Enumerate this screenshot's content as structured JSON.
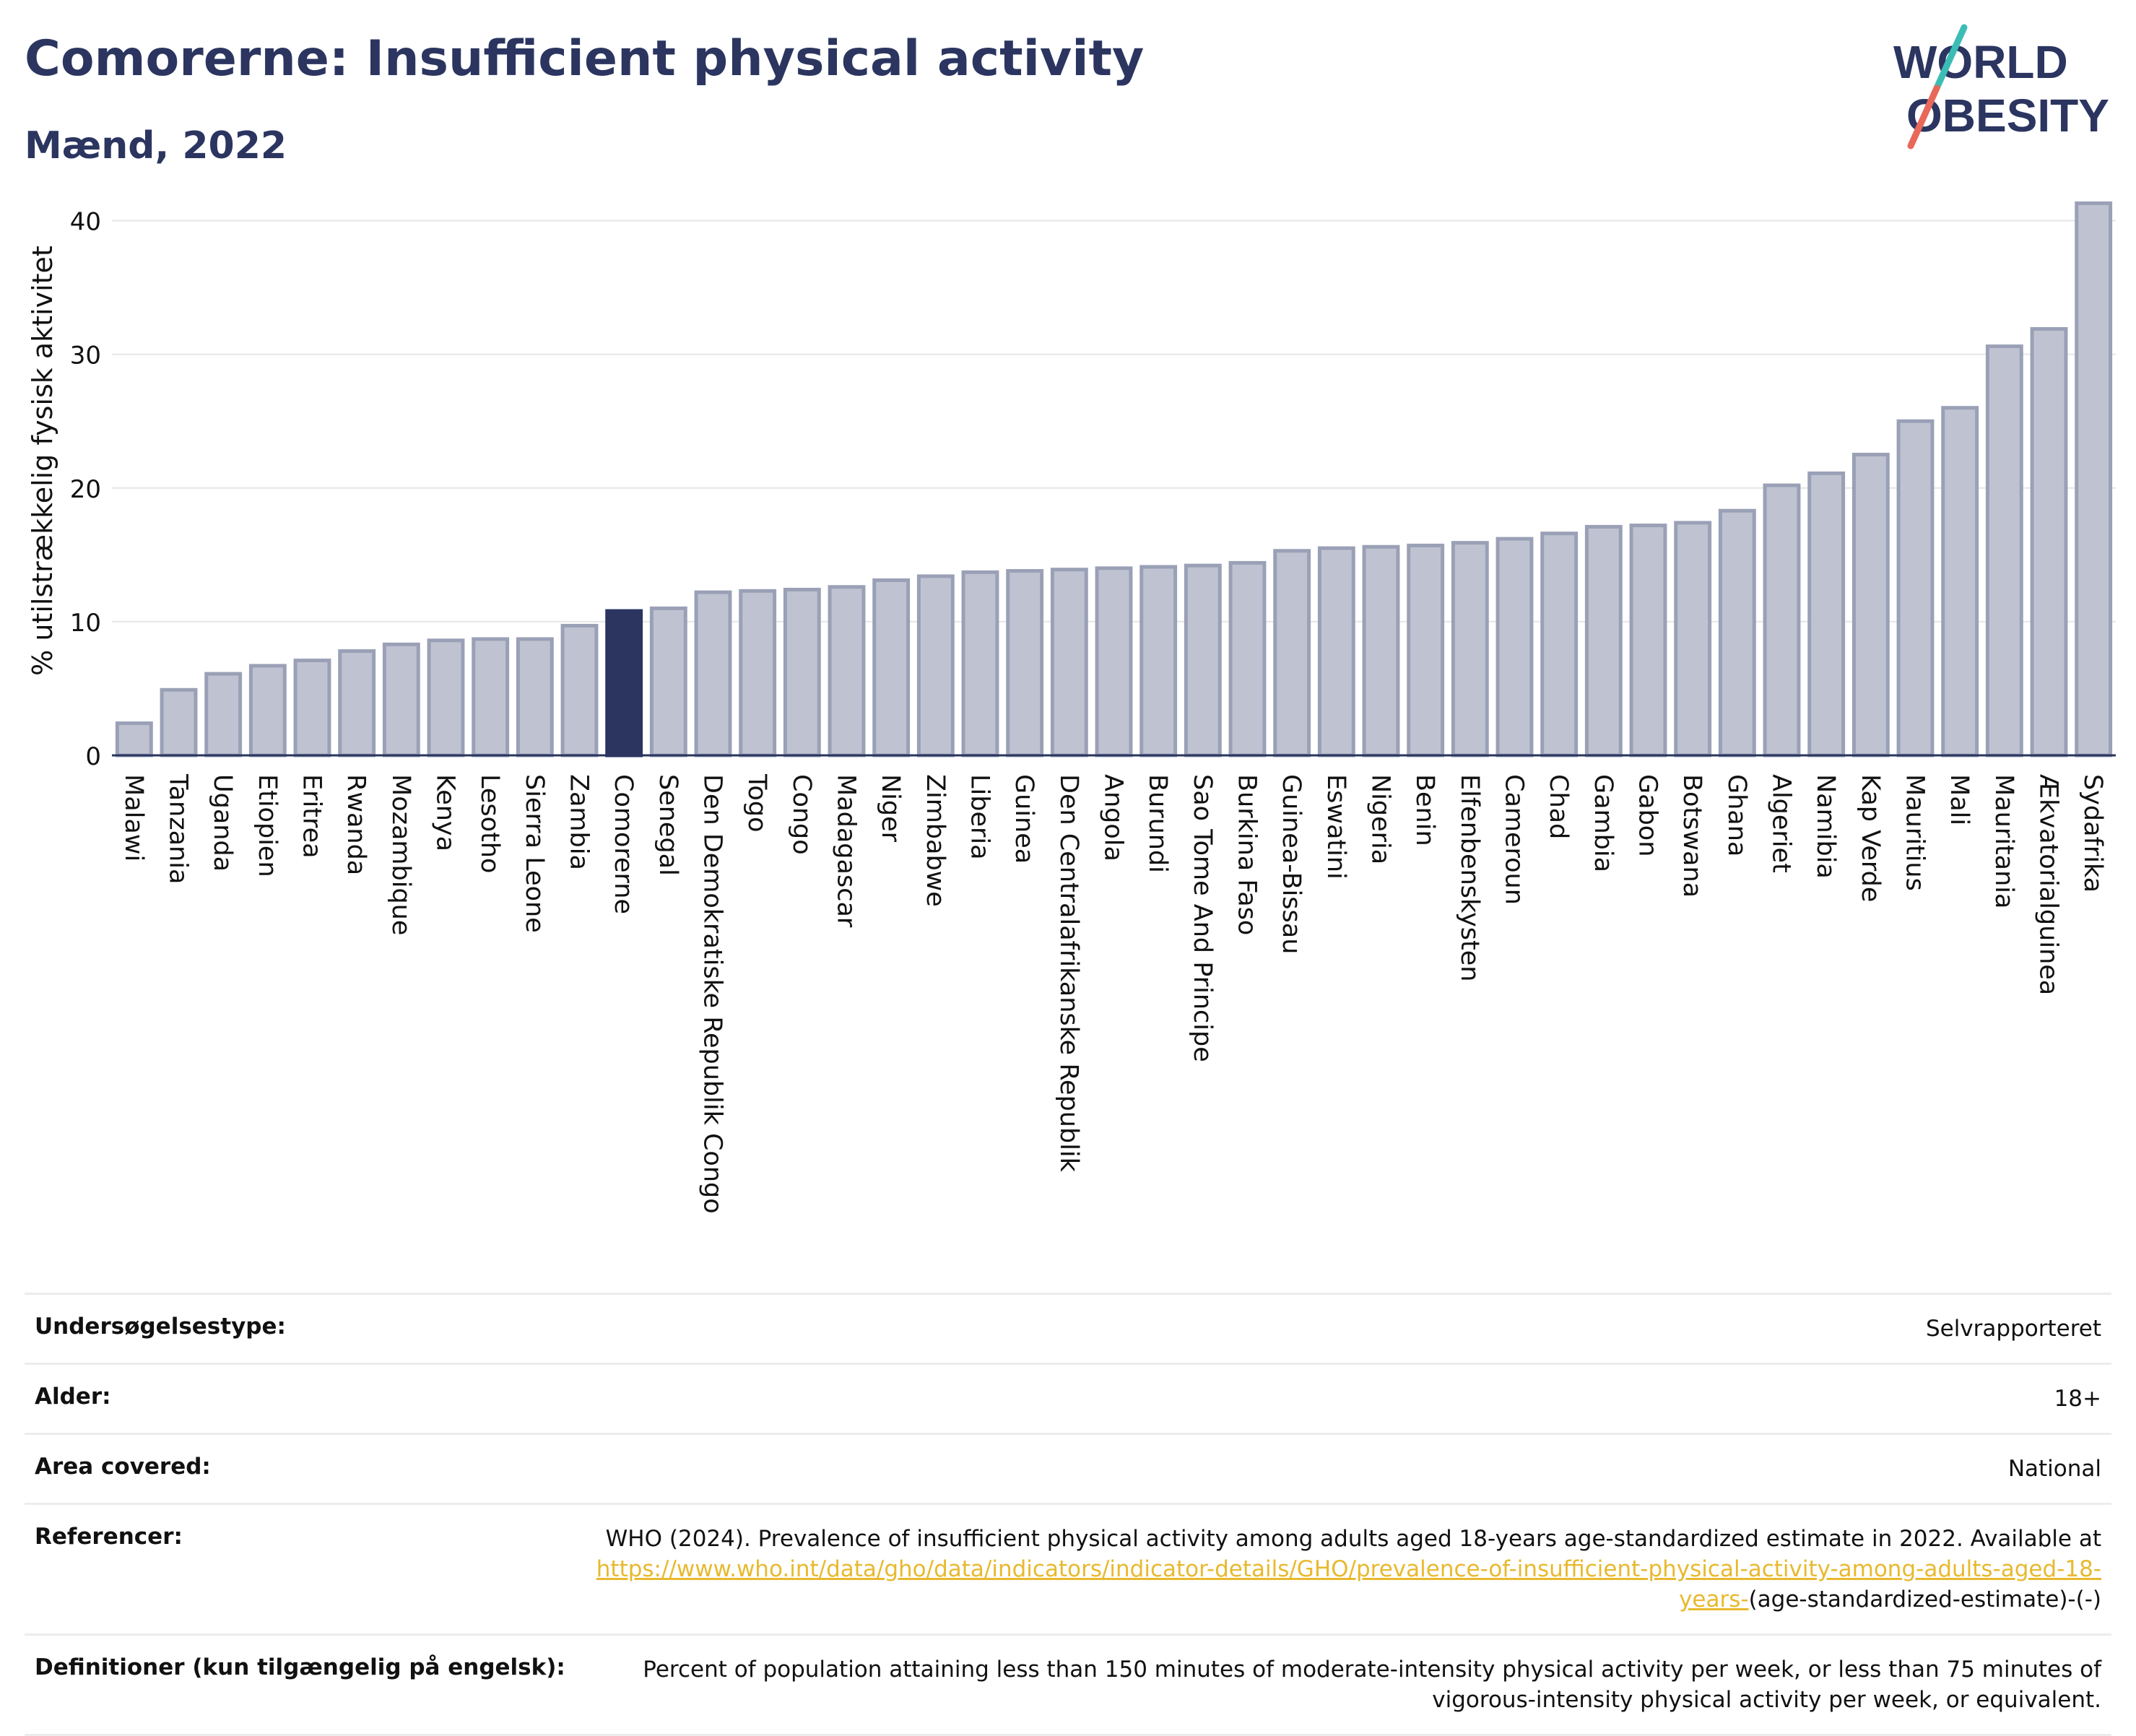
{
  "header": {
    "title": "Comorerne: Insufficient physical activity",
    "subtitle": "Mænd, 2022"
  },
  "logo": {
    "line1": "WORLD",
    "line2": "OBESITY"
  },
  "colors": {
    "title": "#2b3560",
    "bar": "#bfc3d1",
    "bar_stroke": "#9aa0b6",
    "highlight": "#2b3560",
    "link": "#e8b92e"
  },
  "chart_data": {
    "type": "bar",
    "ylabel": "% utilstrækkelig fysisk aktivitet",
    "ylim": [
      0,
      43
    ],
    "yticks": [
      0,
      10,
      20,
      30,
      40
    ],
    "grid": true,
    "highlight": "Comorerne",
    "categories": [
      "Malawi",
      "Tanzania",
      "Uganda",
      "Etiopien",
      "Eritrea",
      "Rwanda",
      "Mozambique",
      "Kenya",
      "Lesotho",
      "Sierra Leone",
      "Zambia",
      "Comorerne",
      "Senegal",
      "Den Demokratiske Republik Congo",
      "Togo",
      "Congo",
      "Madagascar",
      "Niger",
      "Zimbabwe",
      "Liberia",
      "Guinea",
      "Den Centralafrikanske Republik",
      "Angola",
      "Burundi",
      "Sao Tome And Principe",
      "Burkina Faso",
      "Guinea-Bissau",
      "Eswatini",
      "Nigeria",
      "Benin",
      "Elfenbenskysten",
      "Cameroun",
      "Chad",
      "Gambia",
      "Gabon",
      "Botswana",
      "Ghana",
      "Algeriet",
      "Namibia",
      "Kap Verde",
      "Mauritius",
      "Mali",
      "Mauritania",
      "Ækvatorialguinea",
      "Sydafrika"
    ],
    "values": [
      2.4,
      4.9,
      6.1,
      6.7,
      7.1,
      7.8,
      8.3,
      8.6,
      8.7,
      8.7,
      9.7,
      10.8,
      11.0,
      12.2,
      12.3,
      12.4,
      12.6,
      13.1,
      13.4,
      13.7,
      13.8,
      13.9,
      14.0,
      14.1,
      14.2,
      14.4,
      15.3,
      15.5,
      15.6,
      15.7,
      15.9,
      16.2,
      16.6,
      17.1,
      17.2,
      17.4,
      18.3,
      20.2,
      21.1,
      22.5,
      25.0,
      26.0,
      30.6,
      31.9,
      41.3
    ]
  },
  "info": {
    "survey_type_label": "Undersøgelsestype:",
    "survey_type_value": "Selvrapporteret",
    "age_label": "Alder:",
    "age_value": "18+",
    "area_label": "Area covered:",
    "area_value": "National",
    "references_label": "Referencer:",
    "references_text": "WHO (2024). Prevalence of insufficient physical activity among adults aged 18-years age-standardized estimate in 2022. Available at",
    "references_link": "https://www.who.int/data/gho/data/indicators/indicator-details/GHO/prevalence-of-insufficient-physical-activity-among-adults-aged-18-years-",
    "references_suffix": "(age-standardized-estimate)-(-)",
    "definitions_label": "Definitioner (kun tilgængelig på engelsk):",
    "definitions_value": "Percent of population attaining less than 150 minutes of moderate-intensity physical activity per week, or less than 75 minutes of vigorous-intensity physical activity per week, or equivalent."
  }
}
